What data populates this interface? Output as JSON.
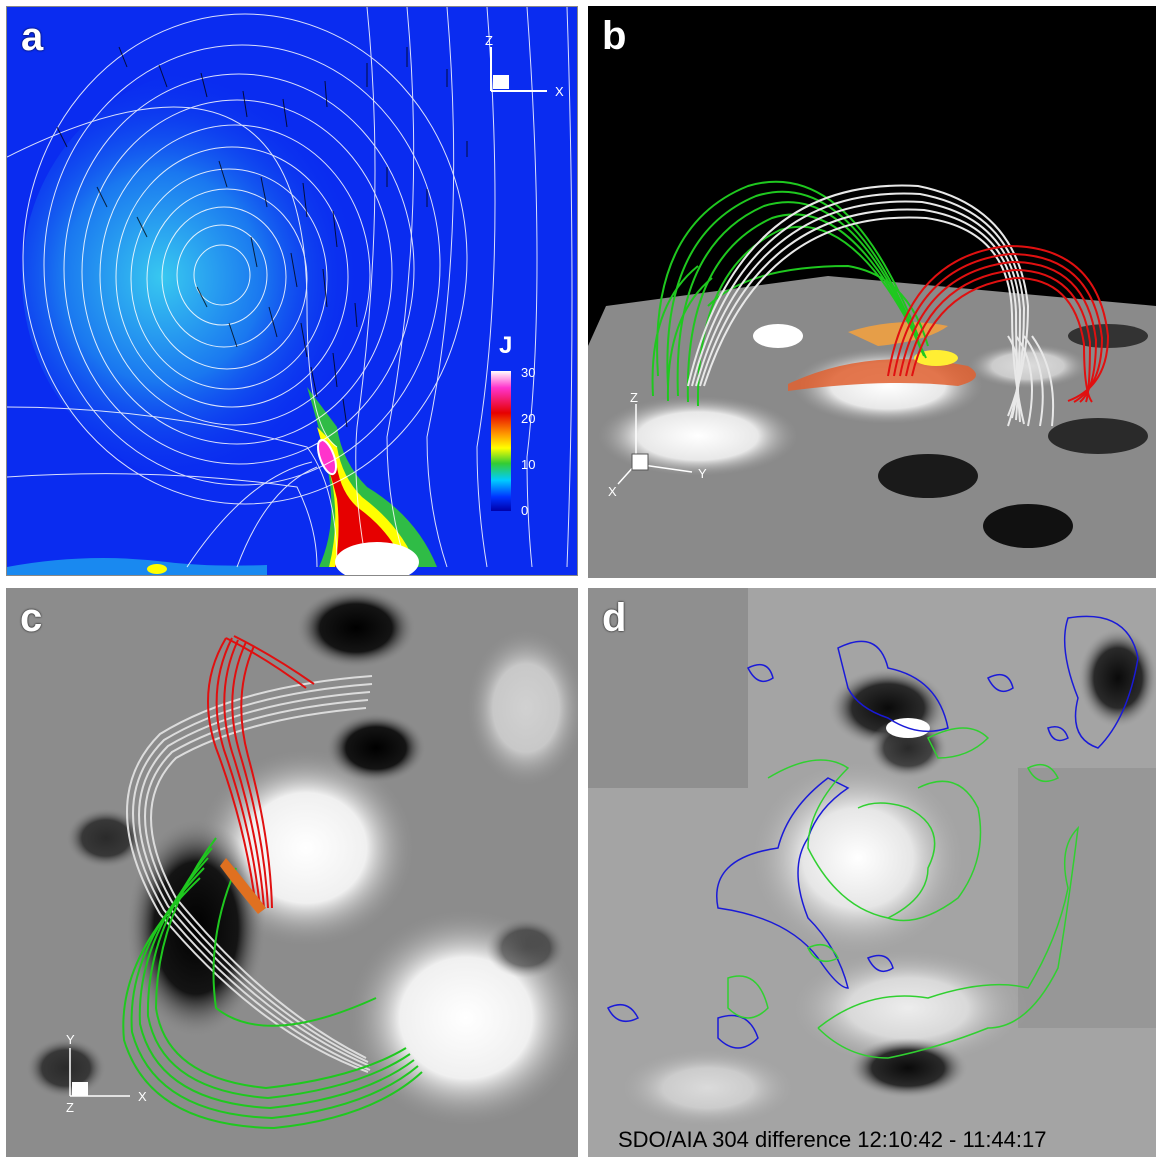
{
  "panels": {
    "a": {
      "label": "a"
    },
    "b": {
      "label": "b"
    },
    "c": {
      "label": "c"
    },
    "d": {
      "label": "d"
    }
  },
  "axes": {
    "a": {
      "z": "Z",
      "x": "X"
    },
    "b": {
      "z": "Z",
      "y": "Y",
      "x": "X"
    },
    "c": {
      "y": "Y",
      "z": "Z",
      "x": "X"
    }
  },
  "colorbar": {
    "title": "J",
    "ticks": [
      "30",
      "20",
      "10",
      "0"
    ],
    "colors": [
      "#ffffff",
      "#ff33cc",
      "#e60000",
      "#ff9900",
      "#ffff00",
      "#33cc33",
      "#00ccff",
      "#0033ff",
      "#0000aa"
    ]
  },
  "caption": "SDO/AIA 304 difference 12:10:42 - 11:44:17",
  "colors": {
    "background_blue": "#0a2cf0",
    "field_line_white": "#ffffff",
    "loop_green": "#1fc81f",
    "loop_red": "#e01010",
    "loop_white": "#e8e8e8",
    "contour_blue": "#1a1ad8",
    "contour_green": "#30d030"
  }
}
